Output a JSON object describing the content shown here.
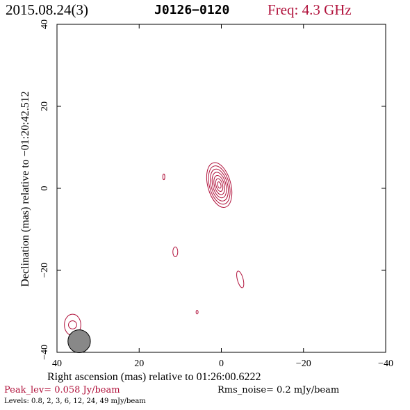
{
  "header": {
    "date": "2015.08.24(3)",
    "source": "J0126−0120",
    "freq": "Freq: 4.3 GHz"
  },
  "footer": {
    "peak": "Peak_lev=  0.058 Jy/beam",
    "rms": "Rms_noise=  0.2 mJy/beam",
    "levels": "Levels: 0.8,   2,   3,   6,  12,  24,  49 mJy/beam"
  },
  "colors": {
    "contour": "#b0103a",
    "beam": "#888888",
    "accent": "#b0103a"
  },
  "chart_data": {
    "type": "contour",
    "xlabel": "Right ascension (mas) relative to 01:26:00.6222",
    "ylabel": "Declination (mas) relative to −01:20:42.512",
    "xlim": [
      40,
      -40
    ],
    "ylim": [
      -40,
      40
    ],
    "x_ticks": [
      40,
      20,
      0,
      -20,
      -40
    ],
    "y_ticks": [
      -40,
      -20,
      0,
      20,
      40
    ],
    "x_tick_labels": [
      "40",
      "20",
      "0",
      "−20",
      "−40"
    ],
    "y_tick_labels": [
      "−40",
      "−20",
      "0",
      "20",
      "40"
    ],
    "levels_mJy": [
      0.8,
      2,
      3,
      6,
      12,
      24,
      49
    ],
    "components": [
      {
        "name": "core",
        "x": 0.5,
        "y": 0.8,
        "ra": [
          2.8,
          2.4,
          2.0,
          1.6,
          1.2,
          0.8,
          0.4
        ],
        "rb": [
          5.6,
          4.8,
          4.0,
          3.2,
          2.4,
          1.6,
          0.8
        ],
        "pa": -15
      },
      {
        "name": "blob1",
        "x": 14,
        "y": 2.8,
        "ra": [
          0.25
        ],
        "rb": [
          0.7
        ],
        "pa": 0
      },
      {
        "name": "blob2",
        "x": 11.2,
        "y": -15.5,
        "ra": [
          0.6
        ],
        "rb": [
          1.2
        ],
        "pa": 0
      },
      {
        "name": "blob3",
        "x": -4.6,
        "y": -22.2,
        "ra": [
          0.7
        ],
        "rb": [
          2.1
        ],
        "pa": -15
      },
      {
        "name": "blob4",
        "x": 5.9,
        "y": -30.2,
        "ra": [
          0.25
        ],
        "rb": [
          0.45
        ],
        "pa": 0
      },
      {
        "name": "blob5",
        "x": 36.2,
        "y": -33.3,
        "ra": [
          2.0,
          1.0
        ],
        "rb": [
          2.6,
          1.0
        ],
        "pa": 0
      }
    ],
    "beam": {
      "x": 34.6,
      "y": -37.3,
      "major": 4.3,
      "minor": 2.1,
      "pa": 0
    },
    "grid": false
  }
}
